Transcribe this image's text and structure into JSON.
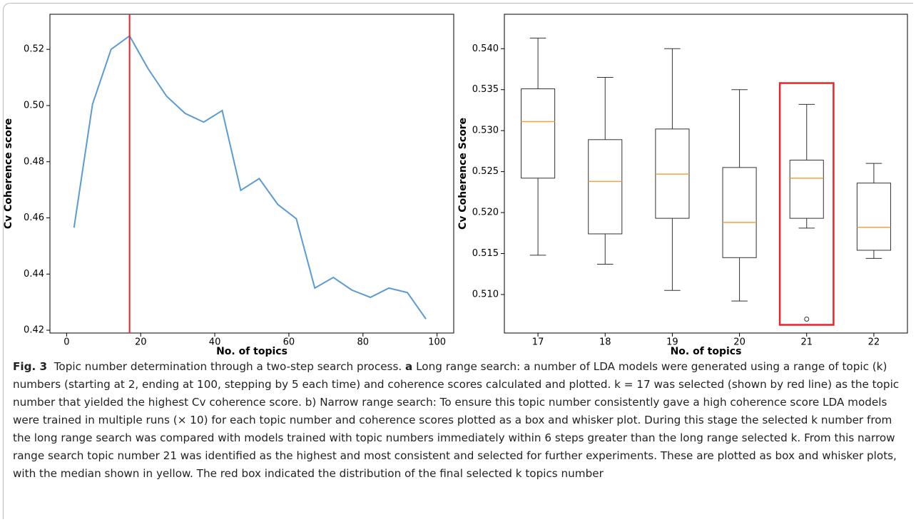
{
  "chart_data": [
    {
      "type": "line",
      "ylabel": "Cv Coherence score",
      "xlabel": "No. of topics",
      "x": [
        2,
        7,
        12,
        17,
        22,
        27,
        32,
        37,
        42,
        47,
        52,
        57,
        62,
        67,
        72,
        77,
        82,
        87,
        92,
        97
      ],
      "values": [
        0.4565,
        0.5005,
        0.52,
        0.5248,
        0.5131,
        0.5033,
        0.4972,
        0.4941,
        0.4982,
        0.4698,
        0.474,
        0.4648,
        0.4597,
        0.435,
        0.4388,
        0.4343,
        0.4317,
        0.435,
        0.4334,
        0.424
      ],
      "color": "#5b9bd5",
      "xlim": [
        -4.5,
        104.5
      ],
      "xticks": [
        0,
        20,
        40,
        60,
        80,
        100
      ],
      "ylim": [
        0.419,
        0.5325
      ],
      "yticks": [
        0.42,
        0.44,
        0.46,
        0.48,
        {
          "value": 0.5,
          "label": "0.50"
        },
        0.52
      ],
      "vline": 17,
      "vline_color": "#e8232a"
    },
    {
      "type": "box",
      "ylabel": "Cv Coherence Score",
      "xlabel": "No. of topics",
      "categories": [
        "17",
        "18",
        "19",
        "20",
        "21",
        "22"
      ],
      "boxes": [
        {
          "whisker_low": 0.5148,
          "q1": 0.5242,
          "median": 0.5311,
          "q3": 0.5351,
          "whisker_high": 0.5413,
          "fliers": []
        },
        {
          "whisker_low": 0.5137,
          "q1": 0.5174,
          "median": 0.5238,
          "q3": 0.5289,
          "whisker_high": 0.5365,
          "fliers": []
        },
        {
          "whisker_low": 0.5105,
          "q1": 0.5193,
          "median": 0.5247,
          "q3": 0.5302,
          "whisker_high": 0.54,
          "fliers": []
        },
        {
          "whisker_low": 0.5092,
          "q1": 0.5145,
          "median": 0.5188,
          "q3": 0.5255,
          "whisker_high": 0.535,
          "fliers": []
        },
        {
          "whisker_low": 0.5181,
          "q1": 0.5193,
          "median": 0.5242,
          "q3": 0.5264,
          "whisker_high": 0.5332,
          "fliers": [
            0.507
          ]
        },
        {
          "whisker_low": 0.5144,
          "q1": 0.5154,
          "median": 0.5182,
          "q3": 0.5236,
          "whisker_high": 0.526,
          "fliers": []
        }
      ],
      "box_color": "#333333",
      "median_color": "#f5a142",
      "ylim": [
        0.5053,
        0.5442
      ],
      "yticks": [
        {
          "value": 0.51,
          "label": "0.510"
        },
        0.515,
        {
          "value": 0.52,
          "label": "0.520"
        },
        0.525,
        {
          "value": 0.53,
          "label": "0.530"
        },
        0.535,
        {
          "value": 0.54,
          "label": "0.540"
        }
      ],
      "highlight_index": 4,
      "highlight_range": [
        0.5063,
        0.5358
      ],
      "highlight_color": "#e8232a"
    }
  ],
  "caption": {
    "label": "Fig. 3",
    "title": "Topic number determination through a two-step search process.",
    "part": "a",
    "text": "Long range search: a number of LDA models were generated using a range of topic (k) numbers (starting at 2, ending at 100, stepping by 5 each time) and coherence scores calculated and plotted. k = 17 was selected (shown by red line) as the topic number that yielded the highest Cv coherence score. b) Narrow range search: To ensure this topic number consistently gave a high coherence score LDA models were trained in multiple runs (× 10) for each topic number and coherence scores plotted as a box and whisker plot. During this stage the selected k number from the long range search was compared with models trained with topic numbers immediately within 6 steps greater than the long range selected k. From this narrow range search topic number 21 was identified as the highest and most consistent and selected for further experiments. These are plotted as box and whisker plots, with the median shown in yellow. The red box indicated the distribution of the final selected k topics number"
  }
}
